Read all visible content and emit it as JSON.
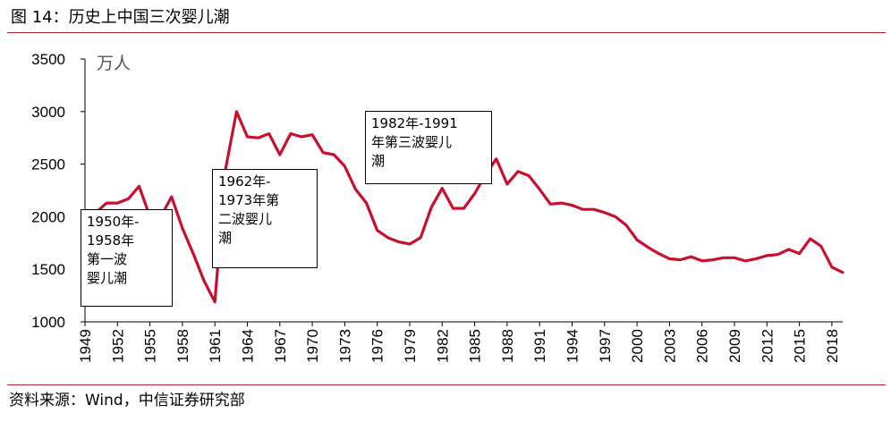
{
  "figure": {
    "title": "图 14：历史上中国三次婴儿潮",
    "source": "资料来源：Wind，中信证券研究部"
  },
  "colors": {
    "rule": "#b0232e",
    "series": "#c8102e"
  },
  "chart_data": {
    "type": "line",
    "unit_label": "万人",
    "ylim": [
      1000,
      3500
    ],
    "yticks": [
      1000,
      1500,
      2000,
      2500,
      3000,
      3500
    ],
    "xlim": [
      1949,
      2019
    ],
    "xticks": [
      1949,
      1952,
      1955,
      1958,
      1961,
      1964,
      1967,
      1970,
      1973,
      1976,
      1979,
      1982,
      1985,
      1988,
      1991,
      1994,
      1997,
      2000,
      2003,
      2006,
      2009,
      2012,
      2015,
      2018
    ],
    "grid": false,
    "series": [
      {
        "x": [
          1949,
          1950,
          1951,
          1952,
          1953,
          1954,
          1955,
          1956,
          1957,
          1958,
          1959,
          1960,
          1961,
          1962,
          1963,
          1964,
          1965,
          1966,
          1967,
          1968,
          1969,
          1970,
          1971,
          1972,
          1973,
          1974,
          1975,
          1976,
          1977,
          1978,
          1979,
          1980,
          1981,
          1982,
          1983,
          1984,
          1985,
          1986,
          1987,
          1988,
          1989,
          1990,
          1991,
          1992,
          1993,
          1994,
          1995,
          1996,
          1997,
          1998,
          1999,
          2000,
          2001,
          2002,
          2003,
          2004,
          2005,
          2006,
          2007,
          2008,
          2009,
          2010,
          2011,
          2012,
          2013,
          2014,
          2015,
          2016,
          2017,
          2018,
          2019
        ],
        "values": [
          1950,
          2040,
          2130,
          2130,
          2170,
          2290,
          2000,
          2000,
          2190,
          1890,
          1650,
          1390,
          1190,
          2460,
          3000,
          2760,
          2750,
          2790,
          2590,
          2790,
          2760,
          2780,
          2610,
          2590,
          2480,
          2260,
          2130,
          1870,
          1800,
          1760,
          1740,
          1800,
          2090,
          2270,
          2080,
          2080,
          2220,
          2400,
          2550,
          2310,
          2430,
          2390,
          2260,
          2120,
          2130,
          2110,
          2070,
          2070,
          2040,
          2000,
          1920,
          1780,
          1710,
          1650,
          1600,
          1590,
          1620,
          1580,
          1590,
          1610,
          1610,
          1580,
          1600,
          1630,
          1640,
          1690,
          1650,
          1790,
          1720,
          1520,
          1470
        ]
      }
    ],
    "annotations": [
      {
        "id": "wave-1",
        "text": "1950年-\n1958年\n第一波\n婴儿潮"
      },
      {
        "id": "wave-2",
        "text": "1962年-\n1973年第\n二波婴儿\n潮"
      },
      {
        "id": "wave-3",
        "text": "1982年-1991\n年第三波婴儿\n潮"
      }
    ]
  }
}
